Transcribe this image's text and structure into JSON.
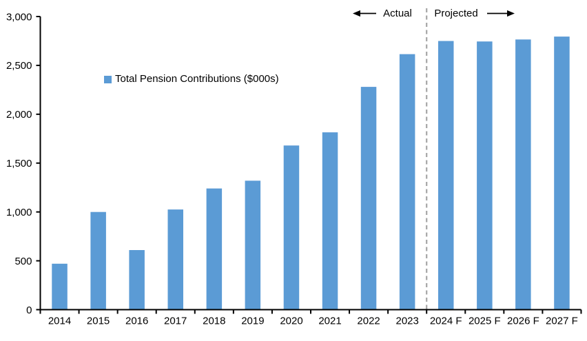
{
  "header": {
    "actual_label": "Actual",
    "projected_label": "Projected"
  },
  "legend": {
    "label": "Total Pension Contributions ($000s)",
    "marker_color": "#5B9BD5"
  },
  "chart_data": {
    "type": "bar",
    "title": "",
    "categories": [
      "2014",
      "2015",
      "2016",
      "2017",
      "2018",
      "2019",
      "2020",
      "2021",
      "2022",
      "2023",
      "2024 F",
      "2025 F",
      "2026 F",
      "2027 F"
    ],
    "series": [
      {
        "name": "Total Pension Contributions ($000s)",
        "color": "#5B9BD5",
        "values": [
          470,
          1000,
          610,
          1025,
          1240,
          1320,
          1680,
          1815,
          2280,
          2615,
          2750,
          2745,
          2765,
          2795
        ]
      }
    ],
    "xlabel": "",
    "ylabel": "",
    "ylim": [
      0,
      3000
    ],
    "ytick_interval": 500,
    "ytick_labels": [
      "0",
      "500",
      "1,000",
      "1,500",
      "2,000",
      "2,500",
      "3,000"
    ],
    "grid": false,
    "legend_position": "inside-upper-left",
    "axis_color": "#000000",
    "divider": {
      "after_category": "2023",
      "style": "dashed",
      "color": "#A6A6A6",
      "label_left": "Actual",
      "label_right": "Projected"
    }
  }
}
